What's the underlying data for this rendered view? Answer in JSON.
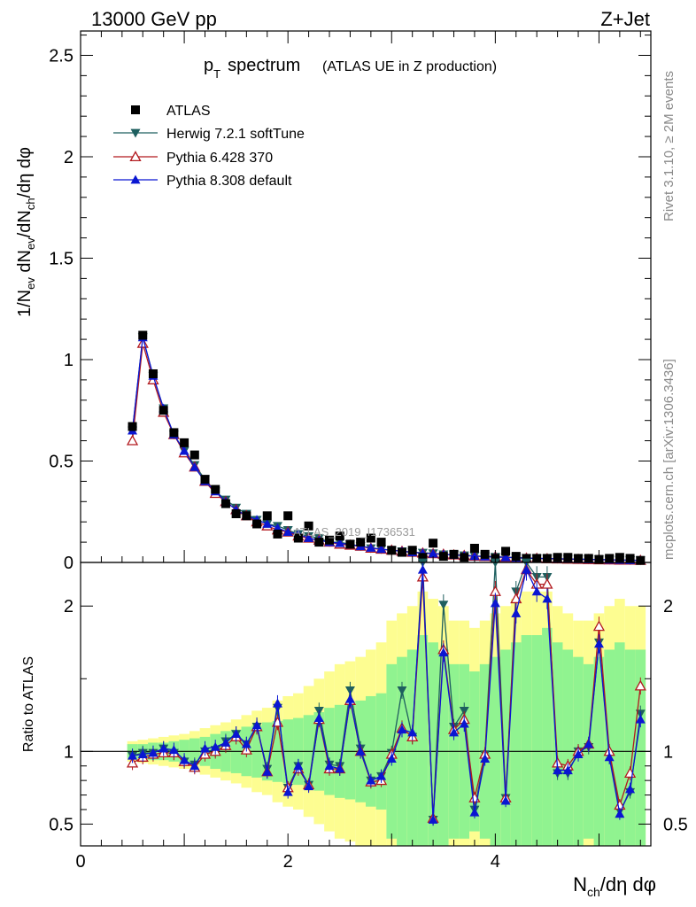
{
  "header": {
    "energy_label": "13000 GeV pp",
    "process_label": "Z+Jet",
    "rivet_label": "Rivet 3.1.10, ≥ 2M events",
    "source_label": "mcplots.cern.ch [arXiv:1306.3436]",
    "analysis_id": "ATLAS_2019_I1736531"
  },
  "chart_data": [
    {
      "type": "scatter",
      "panel": "main",
      "title": "p_T spectrum",
      "title_main": "p",
      "title_sub": "T",
      "title_rest": "spectrum",
      "subtitle": "(ATLAS UE in Z production)",
      "xlabel": "N_ch/dη dφ",
      "ylabel": "1/N_ev dN_ev/dN_ch/dη dφ",
      "xlim": [
        0,
        5.5
      ],
      "ylim": [
        0,
        2.62
      ],
      "yticks": [
        "0",
        "0.5",
        "1",
        "1.5",
        "2",
        "2.5"
      ],
      "legend_position": "top-left",
      "x": [
        0.5,
        0.6,
        0.7,
        0.8,
        0.9,
        1.0,
        1.1,
        1.2,
        1.3,
        1.4,
        1.5,
        1.6,
        1.7,
        1.8,
        1.9,
        2.0,
        2.1,
        2.2,
        2.3,
        2.4,
        2.5,
        2.6,
        2.7,
        2.8,
        2.9,
        3.0,
        3.1,
        3.2,
        3.3,
        3.4,
        3.5,
        3.6,
        3.7,
        3.8,
        3.9,
        4.0,
        4.1,
        4.2,
        4.3,
        4.4,
        4.5,
        4.6,
        4.7,
        4.8,
        4.9,
        5.0,
        5.1,
        5.2,
        5.3,
        5.4
      ],
      "series": [
        {
          "name": "ATLAS",
          "color": "#000000",
          "marker": "square",
          "values": [
            0.67,
            1.12,
            0.93,
            0.75,
            0.64,
            0.59,
            0.53,
            0.41,
            0.36,
            0.29,
            0.24,
            0.23,
            0.19,
            0.23,
            0.14,
            0.23,
            0.12,
            0.18,
            0.1,
            0.11,
            0.13,
            0.09,
            0.1,
            0.12,
            0.1,
            0.06,
            0.05,
            0.06,
            0.025,
            0.095,
            0.03,
            0.04,
            0.025,
            0.07,
            0.04,
            0.02,
            0.055,
            0.03,
            0.02,
            0.02,
            0.02,
            0.025,
            0.025,
            0.02,
            0.02,
            0.015,
            0.02,
            0.025,
            0.02,
            0.01
          ]
        },
        {
          "name": "Herwig 7.2.1 softTune",
          "color": "#1e5f5f",
          "marker": "triangle-down",
          "values": [
            0.65,
            1.11,
            0.92,
            0.76,
            0.63,
            0.55,
            0.48,
            0.41,
            0.35,
            0.31,
            0.27,
            0.24,
            0.21,
            0.19,
            0.18,
            0.16,
            0.14,
            0.13,
            0.12,
            0.1,
            0.1,
            0.09,
            0.08,
            0.07,
            0.065,
            0.06,
            0.055,
            0.05,
            0.048,
            0.045,
            0.04,
            0.038,
            0.035,
            0.032,
            0.03,
            0.028,
            0.026,
            0.024,
            0.022,
            0.02,
            0.019,
            0.018,
            0.017,
            0.016,
            0.015,
            0.014,
            0.013,
            0.012,
            0.011,
            0.01
          ]
        },
        {
          "name": "Pythia 6.428 370",
          "color": "#b2191e",
          "marker": "triangle-up-open",
          "values": [
            0.6,
            1.08,
            0.9,
            0.74,
            0.63,
            0.54,
            0.47,
            0.4,
            0.34,
            0.3,
            0.26,
            0.23,
            0.2,
            0.18,
            0.16,
            0.15,
            0.13,
            0.12,
            0.11,
            0.1,
            0.09,
            0.085,
            0.08,
            0.07,
            0.065,
            0.06,
            0.055,
            0.05,
            0.046,
            0.043,
            0.04,
            0.037,
            0.034,
            0.031,
            0.029,
            0.027,
            0.025,
            0.023,
            0.021,
            0.02,
            0.018,
            0.017,
            0.016,
            0.015,
            0.014,
            0.013,
            0.012,
            0.011,
            0.011,
            0.01
          ]
        },
        {
          "name": "Pythia 8.308 default",
          "color": "#0a16d2",
          "marker": "triangle-up",
          "values": [
            0.65,
            1.11,
            0.92,
            0.76,
            0.63,
            0.55,
            0.47,
            0.4,
            0.35,
            0.3,
            0.26,
            0.23,
            0.21,
            0.19,
            0.17,
            0.15,
            0.14,
            0.12,
            0.11,
            0.1,
            0.095,
            0.088,
            0.08,
            0.072,
            0.066,
            0.06,
            0.055,
            0.05,
            0.046,
            0.043,
            0.04,
            0.037,
            0.034,
            0.031,
            0.029,
            0.027,
            0.025,
            0.023,
            0.021,
            0.02,
            0.019,
            0.018,
            0.017,
            0.016,
            0.015,
            0.014,
            0.013,
            0.012,
            0.011,
            0.01
          ]
        }
      ]
    },
    {
      "type": "line",
      "panel": "ratio",
      "xlabel": "N_ch/dη dφ",
      "xlabel_main": "N",
      "xlabel_sub": "ch",
      "xlabel_rest": "/dη dφ",
      "ylabel": "Ratio to ATLAS",
      "xlim": [
        0,
        5.5
      ],
      "ylim": [
        0.35,
        2.3
      ],
      "xticks": [
        "0",
        "2",
        "4"
      ],
      "yticks": [
        "0.5",
        "1",
        "2"
      ],
      "reference": 1,
      "x": [
        0.5,
        0.6,
        0.7,
        0.8,
        0.9,
        1.0,
        1.1,
        1.2,
        1.3,
        1.4,
        1.5,
        1.6,
        1.7,
        1.8,
        1.9,
        2.0,
        2.1,
        2.2,
        2.3,
        2.4,
        2.5,
        2.6,
        2.7,
        2.8,
        2.9,
        3.0,
        3.1,
        3.2,
        3.3,
        3.4,
        3.5,
        3.6,
        3.7,
        3.8,
        3.9,
        4.0,
        4.1,
        4.2,
        4.3,
        4.4,
        4.5,
        4.6,
        4.7,
        4.8,
        4.9,
        5.0,
        5.1,
        5.2,
        5.3,
        5.4
      ],
      "band_stat": [
        0.05,
        0.05,
        0.06,
        0.06,
        0.07,
        0.08,
        0.09,
        0.1,
        0.12,
        0.14,
        0.15,
        0.17,
        0.18,
        0.2,
        0.21,
        0.22,
        0.23,
        0.25,
        0.27,
        0.3,
        0.32,
        0.33,
        0.35,
        0.38,
        0.4,
        0.6,
        0.65,
        0.7,
        0.8,
        0.75,
        0.7,
        0.6,
        0.6,
        0.55,
        0.6,
        0.65,
        0.7,
        0.75,
        0.8,
        0.8,
        0.85,
        0.75,
        0.7,
        0.65,
        0.6,
        0.65,
        0.7,
        0.75,
        0.7,
        0.7
      ],
      "band_total": [
        0.07,
        0.08,
        0.09,
        0.1,
        0.11,
        0.12,
        0.14,
        0.16,
        0.18,
        0.2,
        0.22,
        0.25,
        0.28,
        0.3,
        0.35,
        0.38,
        0.4,
        0.45,
        0.5,
        0.55,
        0.6,
        0.62,
        0.65,
        0.7,
        0.75,
        0.9,
        0.95,
        1.0,
        1.1,
        1.05,
        1.0,
        0.9,
        0.9,
        0.85,
        0.9,
        0.95,
        1.0,
        1.05,
        1.1,
        1.1,
        1.1,
        1.0,
        0.95,
        0.9,
        0.9,
        0.95,
        1.0,
        1.05,
        1.0,
        1.0
      ],
      "series": [
        {
          "name": "Herwig 7.2.1 softTune",
          "color": "#1e5f5f",
          "marker": "triangle-down",
          "values": [
            0.97,
            0.99,
            0.99,
            1.02,
            0.99,
            0.93,
            0.91,
            1.0,
            1.01,
            1.07,
            1.12,
            1.05,
            1.17,
            0.88,
            1.3,
            0.75,
            0.9,
            0.77,
            1.28,
            0.91,
            0.9,
            1.42,
            1.02,
            0.8,
            0.83,
            0.99,
            1.42,
            1.1,
            2.3,
            0.53,
            2.01,
            1.17,
            1.28,
            0.6,
            0.98,
            2.3,
            0.68,
            2.1,
            2.3,
            2.2,
            2.2,
            0.85,
            0.85,
            1.0,
            1.03,
            1.75,
            0.98,
            0.59,
            0.72,
            1.26
          ]
        },
        {
          "name": "Pythia 6.428 370",
          "color": "#b2191e",
          "marker": "triangle-up-open",
          "values": [
            0.92,
            0.96,
            0.98,
            0.99,
            0.99,
            0.93,
            0.89,
            0.98,
            1.0,
            1.04,
            1.1,
            1.01,
            1.17,
            0.86,
            1.2,
            0.75,
            0.88,
            0.77,
            1.22,
            0.88,
            0.88,
            1.35,
            1.0,
            0.79,
            0.8,
            0.98,
            1.16,
            1.1,
            2.2,
            0.54,
            1.7,
            1.15,
            1.22,
            0.68,
            0.98,
            2.1,
            0.68,
            2.05,
            2.25,
            2.15,
            2.15,
            0.92,
            0.9,
            1.0,
            1.05,
            1.86,
            1.0,
            0.63,
            0.85,
            1.45
          ]
        },
        {
          "name": "Pythia 8.308 default",
          "color": "#0a16d2",
          "marker": "triangle-up",
          "values": [
            0.97,
            0.98,
            0.99,
            1.02,
            1.01,
            0.94,
            0.9,
            1.02,
            1.03,
            1.06,
            1.12,
            1.05,
            1.18,
            0.86,
            1.33,
            0.72,
            0.9,
            0.76,
            1.23,
            0.9,
            0.88,
            1.36,
            1.0,
            0.8,
            0.83,
            0.95,
            1.15,
            1.13,
            2.25,
            0.53,
            1.68,
            1.13,
            1.19,
            0.58,
            0.95,
            2.02,
            0.66,
            1.95,
            2.25,
            2.1,
            2.05,
            0.87,
            0.87,
            0.98,
            1.05,
            1.74,
            0.96,
            0.57,
            0.74,
            1.22
          ]
        }
      ]
    }
  ]
}
